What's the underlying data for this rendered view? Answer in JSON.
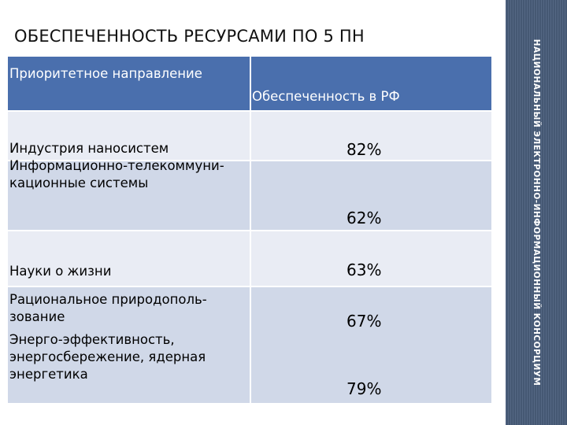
{
  "title": "ОБЕСПЕЧЕННОСТЬ РЕСУРСАМИ ПО 5 ПН",
  "sidebar_text": "НАЦИОНАЛЬНЫЙ ЭЛЕКТРОННО-ИНФОРМАЦИОННЫЙ КОНСОРЦИУМ",
  "table": {
    "headers": [
      "Приоритетное направление",
      "Обеспеченность в РФ"
    ],
    "rows": [
      {
        "label": "Индустрия наносистем",
        "value": "82%"
      },
      {
        "label": "Информационно-телекоммуни-кационные системы",
        "value": "62%"
      },
      {
        "label": "Науки о жизни",
        "value": "63%"
      },
      {
        "label": "Рациональное природополь-зование",
        "value": "67%"
      },
      {
        "label": "Энерго-эффективность, энергосбережение, ядерная энергетика",
        "value": "79%"
      }
    ]
  },
  "colors": {
    "header_bg": "#4a6fad",
    "row_light": "#e9ecf4",
    "row_dark": "#d0d8e8",
    "sidebar": "#4b5f7d"
  }
}
